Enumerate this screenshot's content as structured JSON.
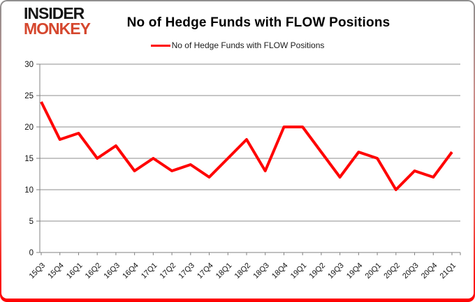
{
  "logo": {
    "line1": "INSIDER",
    "line2": "MONKEY",
    "brand_red": "#d5472e",
    "brand_black": "#151515"
  },
  "title": "No of Hedge Funds with FLOW Positions",
  "legend": {
    "label": "No of Hedge Funds with FLOW Positions",
    "color": "#ff0000"
  },
  "chart_data": {
    "type": "line",
    "title": "No of Hedge Funds with FLOW Positions",
    "categories": [
      "15Q3",
      "15Q4",
      "16Q1",
      "16Q2",
      "16Q3",
      "16Q4",
      "17Q1",
      "17Q2",
      "17Q3",
      "17Q4",
      "18Q1",
      "18Q2",
      "18Q3",
      "18Q4",
      "19Q1",
      "19Q2",
      "19Q3",
      "19Q4",
      "20Q1",
      "20Q2",
      "20Q3",
      "20Q4",
      "21Q1"
    ],
    "series": [
      {
        "name": "No of Hedge Funds with FLOW Positions",
        "color": "#ff0000",
        "values": [
          24,
          18,
          19,
          15,
          17,
          13,
          15,
          13,
          14,
          12,
          15,
          18,
          13,
          20,
          20,
          16,
          12,
          16,
          15,
          10,
          13,
          12,
          16
        ]
      }
    ],
    "xlabel": "",
    "ylabel": "",
    "ylim": [
      0,
      30
    ],
    "yticks": [
      0,
      5,
      10,
      15,
      20,
      25,
      30
    ],
    "grid": true,
    "legend_position": "top",
    "gridline_color": "#8c8c8c",
    "axis_color": "#808080",
    "tick_label_color": "#111111",
    "line_width": 4
  }
}
